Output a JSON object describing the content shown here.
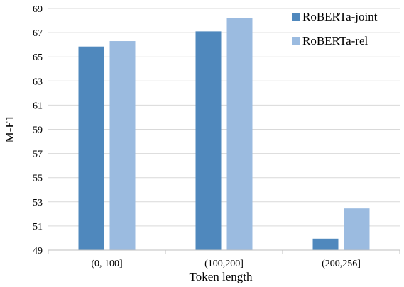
{
  "chart_data": {
    "type": "bar",
    "title": "",
    "xlabel": "Token length",
    "ylabel": "M-F1",
    "categories": [
      "(0, 100]",
      "(100,200]",
      "(200,256]"
    ],
    "series": [
      {
        "name": "RoBERTa-joint",
        "values": [
          65.85,
          67.1,
          49.95
        ],
        "color": "#4f88bd"
      },
      {
        "name": "RoBERTa-rel",
        "values": [
          66.3,
          68.2,
          52.45
        ],
        "color": "#9bbbe0"
      }
    ],
    "ylim": [
      49,
      69
    ],
    "yticks": [
      49,
      51,
      53,
      55,
      57,
      59,
      61,
      63,
      65,
      67,
      69
    ],
    "grid": true,
    "legend_position": "top-right"
  }
}
